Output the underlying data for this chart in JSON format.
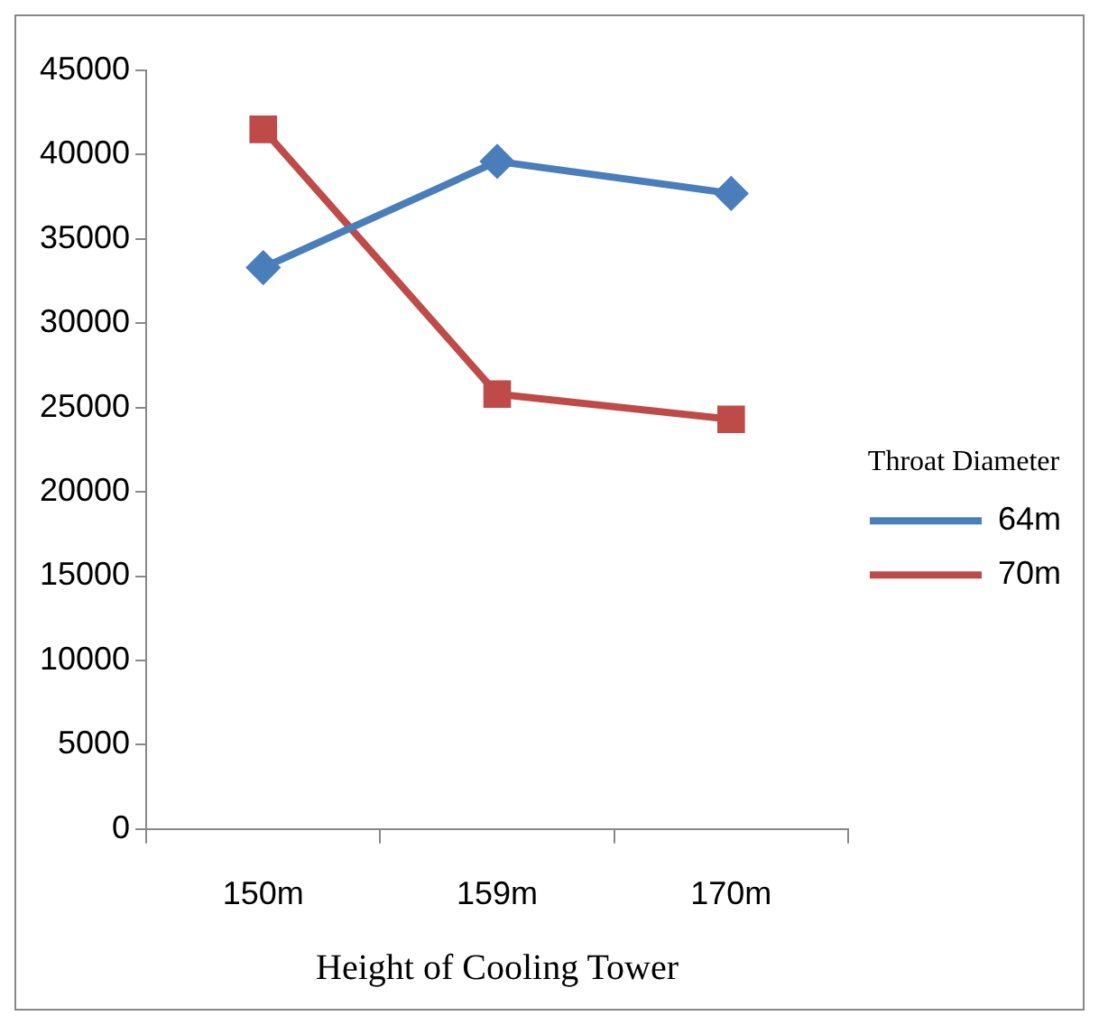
{
  "chart_data": {
    "type": "line",
    "xlabel": "Height of Cooling Tower",
    "legend_title": "Throat Diameter",
    "categories": [
      "150m",
      "159m",
      "170m"
    ],
    "series": [
      {
        "name": "64m",
        "color": "#4a7ebb",
        "marker": "diamond",
        "values": [
          33300,
          39600,
          37700
        ]
      },
      {
        "name": "70m",
        "color": "#be4b48",
        "marker": "square",
        "values": [
          41500,
          25800,
          24300
        ]
      }
    ],
    "ylim": [
      0,
      45000
    ],
    "yticks": [
      0,
      5000,
      10000,
      15000,
      20000,
      25000,
      30000,
      35000,
      40000,
      45000
    ],
    "grid": false,
    "legend": "right",
    "line_style": "solid"
  }
}
